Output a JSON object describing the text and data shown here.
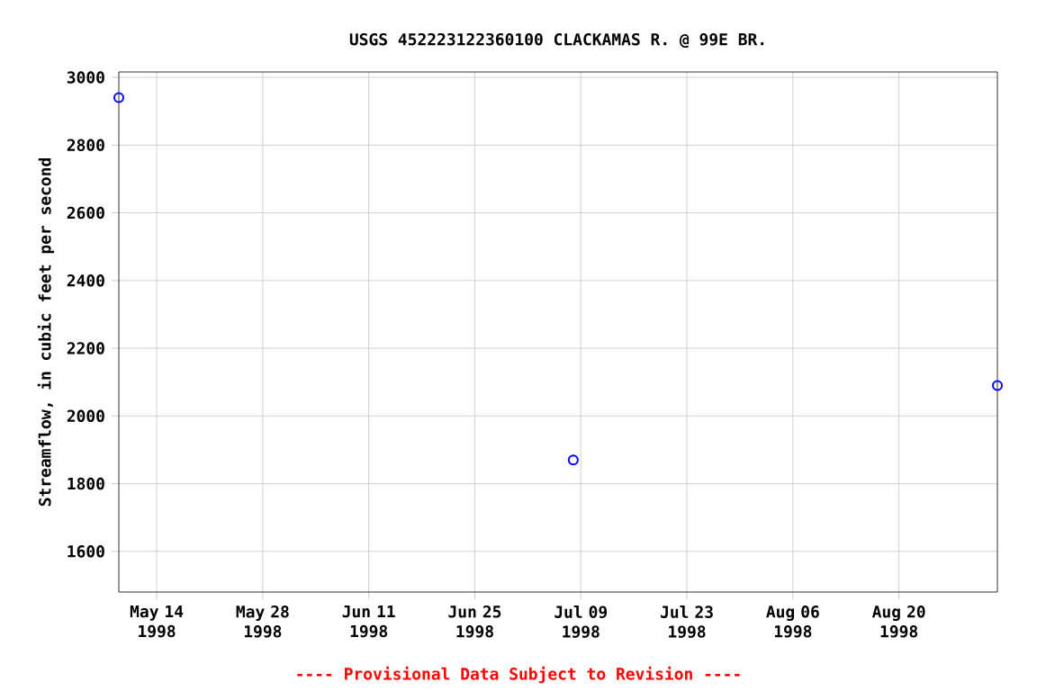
{
  "chart_data": {
    "type": "scatter",
    "title": "USGS 452223122360100 CLACKAMAS R. @ 99E BR.",
    "ylabel": "Streamflow, in cubic feet per second",
    "annotations": [
      "---- Provisional Data Subject to Revision ----"
    ],
    "x": [
      "1998-05-09",
      "1998-07-08",
      "1998-09-02"
    ],
    "series": [
      {
        "color": "#0000ff",
        "values": [
          2940,
          1870,
          2090
        ]
      }
    ],
    "xlim": [
      "1998-05-09",
      "1998-09-02"
    ],
    "ylim": [
      1480,
      3016
    ],
    "xticks": [
      {
        "value": "1998-05-14",
        "label": "May 14 1998"
      },
      {
        "value": "1998-05-28",
        "label": "May 28 1998"
      },
      {
        "value": "1998-06-11",
        "label": "Jun 11 1998"
      },
      {
        "value": "1998-06-25",
        "label": "Jun 25 1998"
      },
      {
        "value": "1998-07-09",
        "label": "Jul 09 1998"
      },
      {
        "value": "1998-07-23",
        "label": "Jul 23 1998"
      },
      {
        "value": "1998-08-06",
        "label": "Aug 06 1998"
      },
      {
        "value": "1998-08-20",
        "label": "Aug 20 1998"
      }
    ],
    "yticks": [
      1600,
      1800,
      2000,
      2200,
      2400,
      2600,
      2800,
      3000
    ],
    "grid": true,
    "marker": "circle"
  }
}
